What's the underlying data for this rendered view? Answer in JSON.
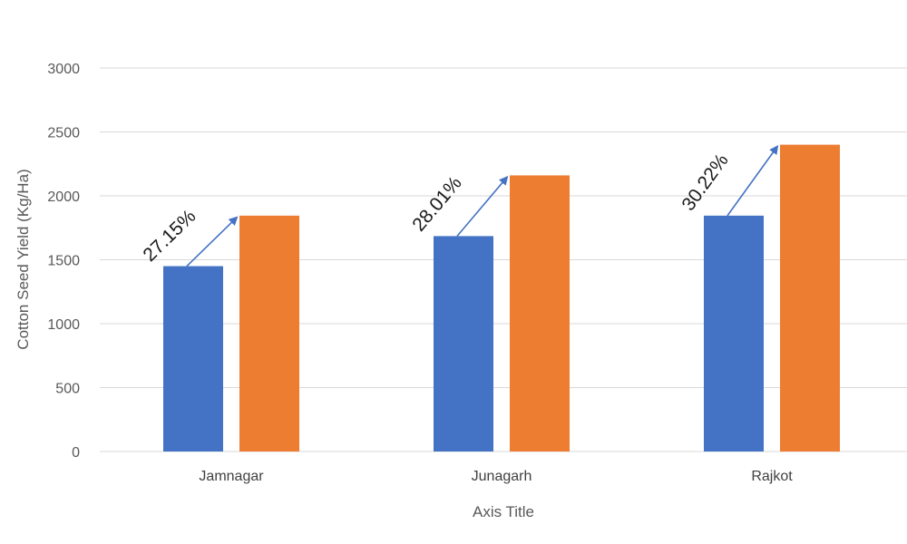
{
  "chart_data": {
    "type": "bar",
    "title": "",
    "xlabel": "Axis Title",
    "ylabel": "Cotton Seed Yield (Kg/Ha)",
    "ylim": [
      0,
      3000
    ],
    "yticks": [
      0,
      500,
      1000,
      1500,
      2000,
      2500,
      3000
    ],
    "grid": true,
    "legend": "none",
    "categories": [
      "Jamnagar",
      "Junagarh",
      "Rajkot"
    ],
    "series": [
      {
        "values": [
          1450,
          1685,
          1845
        ],
        "color": "#4472c4"
      },
      {
        "values": [
          1845,
          2160,
          2400
        ],
        "color": "#ed7d31"
      }
    ],
    "annotations": [
      "27.15%",
      "28.01%",
      "30.22%"
    ],
    "arrow_color": "#4472c4"
  }
}
